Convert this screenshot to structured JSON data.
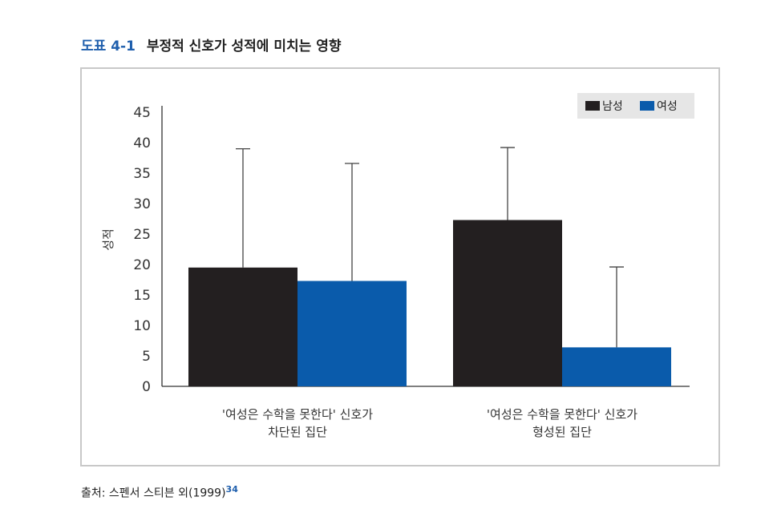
{
  "heading": {
    "label": "도표 4-1",
    "title": "부정적 신호가 성적에 미치는 영향"
  },
  "source": {
    "text": "출처: 스펜서 스티븐 외(1999)",
    "ref": "34"
  },
  "colors": {
    "male": "#231f20",
    "female": "#0a5bab",
    "axis": "#333333",
    "error_bar": "#444444",
    "legend_bg": "#e6e6e6",
    "frame_border": "#c8c8c8",
    "accent": "#1f5fad"
  },
  "chart_data": {
    "type": "bar",
    "title": "",
    "xlabel": "",
    "ylabel": "성적",
    "ylim": [
      0,
      45
    ],
    "yticks": [
      0,
      5,
      10,
      15,
      20,
      25,
      30,
      35,
      40,
      45
    ],
    "grid": false,
    "legend_position": "top-right",
    "categories": [
      [
        "'여성은 수학을 못한다' 신호가",
        "차단된 집단"
      ],
      [
        "'여성은 수학을 못한다' 신호가",
        "형성된 집단"
      ]
    ],
    "series": [
      {
        "name": "남성",
        "color": "#231f20",
        "values": [
          19.5,
          27.3
        ],
        "error_upper": [
          39.0,
          39.2
        ]
      },
      {
        "name": "여성",
        "color": "#0a5bab",
        "values": [
          17.3,
          6.4
        ],
        "error_upper": [
          36.6,
          19.6
        ]
      }
    ]
  }
}
